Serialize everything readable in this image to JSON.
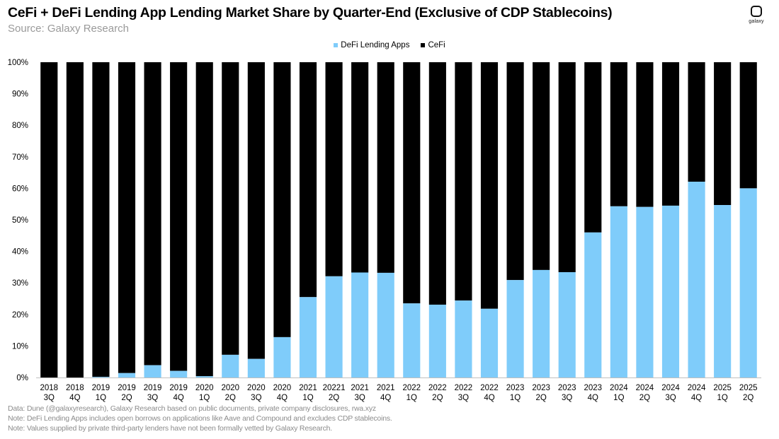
{
  "header": {
    "title": "CeFi + DeFi Lending App Lending Market Share by Quarter-End (Exclusive of CDP Stablecoins)",
    "subtitle": "Source: Galaxy Research"
  },
  "logo": {
    "text": "galaxy",
    "icon": "galaxy-logo-icon"
  },
  "notes": [
    "Data: Dune (@galaxyresearch), Galaxy Research based on public documents, private company disclosures, rwa.xyz",
    "Note: DeFi Lending Apps includes open borrows on applications like Aave and Compound and excludes CDP stablecoins.",
    "Note: Values supplied by private third-party lenders have not been formally vetted  by Galaxy Research."
  ],
  "colors": {
    "defi": "#7fccfa",
    "cefi": "#000000"
  },
  "chart_data": {
    "type": "bar",
    "stacked": true,
    "ylim": [
      0,
      100
    ],
    "yticks": [
      "0%",
      "10%",
      "20%",
      "30%",
      "40%",
      "50%",
      "60%",
      "70%",
      "80%",
      "90%",
      "100%"
    ],
    "legend_position": "top-center",
    "grid": false,
    "categories": [
      [
        "2018",
        "3Q"
      ],
      [
        "2018",
        "4Q"
      ],
      [
        "2019",
        "1Q"
      ],
      [
        "2019",
        "2Q"
      ],
      [
        "2019",
        "3Q"
      ],
      [
        "2019",
        "4Q"
      ],
      [
        "2020",
        "1Q"
      ],
      [
        "2020",
        "2Q"
      ],
      [
        "2020",
        "3Q"
      ],
      [
        "2020",
        "4Q"
      ],
      [
        "2021",
        "1Q"
      ],
      [
        "20221",
        "2Q"
      ],
      [
        "2021",
        "3Q"
      ],
      [
        "2021",
        "4Q"
      ],
      [
        "2022",
        "1Q"
      ],
      [
        "2022",
        "2Q"
      ],
      [
        "2022",
        "3Q"
      ],
      [
        "2022",
        "4Q"
      ],
      [
        "2023",
        "1Q"
      ],
      [
        "2023",
        "2Q"
      ],
      [
        "2023",
        "3Q"
      ],
      [
        "2023",
        "4Q"
      ],
      [
        "2024",
        "1Q"
      ],
      [
        "2024",
        "2Q"
      ],
      [
        "2024",
        "3Q"
      ],
      [
        "2024",
        "4Q"
      ],
      [
        "2025",
        "1Q"
      ],
      [
        "2025",
        "2Q"
      ]
    ],
    "series": [
      {
        "name": "DeFi Lending Apps",
        "values": [
          0,
          0,
          0.2,
          1.4,
          3.9,
          2.1,
          0.4,
          7.2,
          5.9,
          12.8,
          25.5,
          32.1,
          33.3,
          33.2,
          23.5,
          23.1,
          24.4,
          21.8,
          30.9,
          34.1,
          33.4,
          46.0,
          54.3,
          54.1,
          54.5,
          62.1,
          54.7,
          60.0
        ]
      },
      {
        "name": "CeFi",
        "values": [
          100,
          100,
          99.8,
          98.6,
          96.1,
          97.9,
          99.6,
          92.8,
          94.1,
          87.2,
          74.5,
          67.9,
          66.7,
          66.8,
          76.5,
          76.9,
          75.6,
          78.2,
          69.1,
          65.9,
          66.6,
          54.0,
          45.7,
          45.9,
          45.5,
          37.9,
          45.3,
          40.0
        ]
      }
    ]
  }
}
